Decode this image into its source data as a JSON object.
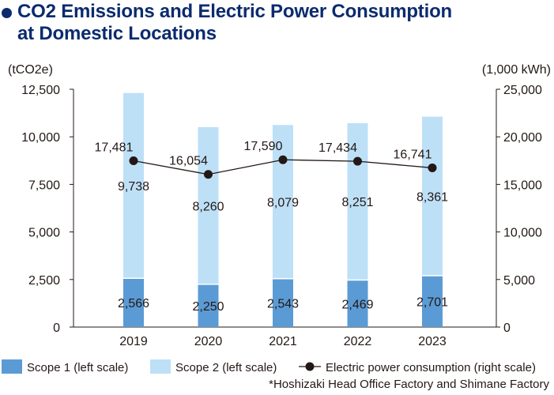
{
  "title": {
    "line1": "CO2 Emissions and Electric Power Consumption",
    "line2": "at Domestic Locations"
  },
  "footnote": "*Hoshizaki Head Office Factory and Shimane Factory",
  "colors": {
    "scope1": "#5b9bd5",
    "scope2": "#bde0f7",
    "line": "#231815",
    "title": "#0b2b6e"
  },
  "chart_data": {
    "type": "bar",
    "categories": [
      "2019",
      "2020",
      "2021",
      "2022",
      "2023"
    ],
    "series": [
      {
        "name": "Scope 1 (left scale)",
        "kind": "stacked-bar",
        "axis": "left",
        "values": [
          2566,
          2250,
          2543,
          2469,
          2701
        ],
        "labels": [
          "2,566",
          "2,250",
          "2,543",
          "2,469",
          "2,701"
        ]
      },
      {
        "name": "Scope 2 (left scale)",
        "kind": "stacked-bar",
        "axis": "left",
        "values": [
          9738,
          8260,
          8079,
          8251,
          8361
        ],
        "labels": [
          "9,738",
          "8,260",
          "8,079",
          "8,251",
          "8,361"
        ]
      },
      {
        "name": "Electric power consumption (right scale)",
        "kind": "line",
        "axis": "right",
        "values": [
          17481,
          16054,
          17590,
          17434,
          16741
        ],
        "labels": [
          "17,481",
          "16,054",
          "17,590",
          "17,434",
          "16,741"
        ]
      }
    ],
    "y_left": {
      "unit": "(tCO2e)",
      "min": 0,
      "max": 12500,
      "ticks": [
        "0",
        "2,500",
        "5,000",
        "7,500",
        "10,000",
        "12,500"
      ]
    },
    "y_right": {
      "unit": "(1,000 kWh)",
      "min": 0,
      "max": 25000,
      "ticks": [
        "0",
        "5,000",
        "10,000",
        "15,000",
        "20,000",
        "25,000"
      ]
    },
    "legend_position": "bottom",
    "grid": false
  }
}
